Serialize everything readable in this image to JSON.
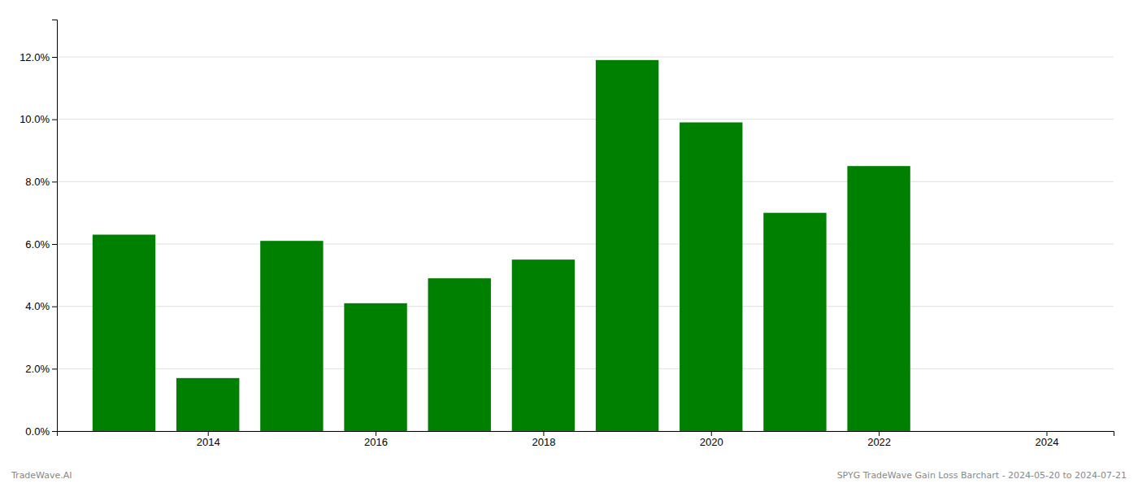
{
  "chart_data": {
    "type": "bar",
    "x": [
      2013,
      2014,
      2015,
      2016,
      2017,
      2018,
      2019,
      2020,
      2021,
      2022
    ],
    "values": [
      0.063,
      0.017,
      0.061,
      0.041,
      0.049,
      0.055,
      0.119,
      0.099,
      0.07,
      0.085
    ],
    "color": "#008000",
    "xlim": [
      2012.2,
      2024.8
    ],
    "xticks": [
      2014,
      2016,
      2018,
      2020,
      2022,
      2024
    ],
    "ylim": [
      0,
      0.132
    ],
    "yticks": [
      {
        "value": 0.0,
        "label": "0.0%"
      },
      {
        "value": 0.02,
        "label": "2.0%"
      },
      {
        "value": 0.04,
        "label": "4.0%"
      },
      {
        "value": 0.06,
        "label": "6.0%"
      },
      {
        "value": 0.08,
        "label": "8.0%"
      },
      {
        "value": 0.1,
        "label": "10.0%"
      },
      {
        "value": 0.12,
        "label": "12.0%"
      }
    ],
    "grid": true,
    "annotations": [
      "TradeWave.AI",
      "SPYG TradeWave Gain Loss Barchart - 2024-05-20 to 2024-07-21"
    ]
  }
}
